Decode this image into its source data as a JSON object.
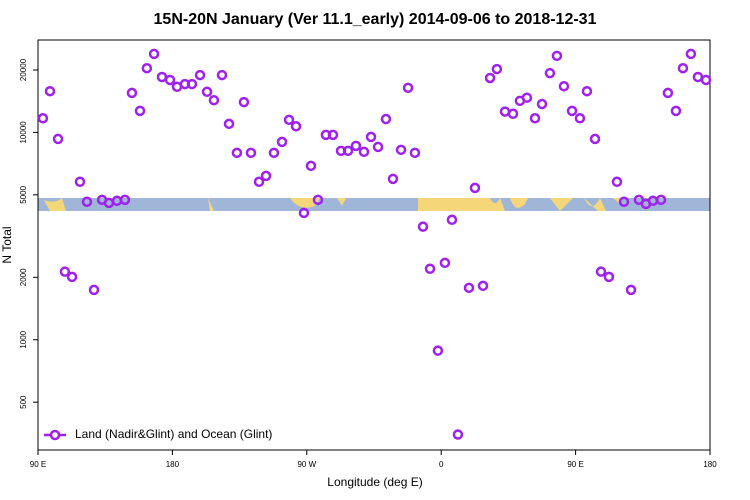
{
  "chart_data": {
    "type": "scatter",
    "title": "15N-20N January (Ver 11.1_early)   2014-09-06 to 2018-12-31",
    "x_label": "Longitude (deg E)",
    "y_label": "N Total",
    "xlim": [
      90,
      540
    ],
    "ylim": [
      294,
      27900
    ],
    "ylog": true,
    "legend": "bottom-left",
    "xticks": [
      {
        "value": 90,
        "label": "90 E"
      },
      180,
      {
        "value": 270,
        "label": "90 W"
      },
      {
        "value": 360,
        "label": "0"
      },
      {
        "value": 450,
        "label": "90 E"
      },
      {
        "value": 540,
        "label": "180"
      }
    ],
    "yticks": [
      500,
      1000,
      2000,
      5000,
      10000,
      20000
    ],
    "series": [
      {
        "name": "Land (Nadir&Glint) and Ocean (Glint)",
        "color": "#a020f0",
        "x": [
          93.3,
          98.0,
          103.4,
          108.0,
          112.8,
          118.1,
          122.8,
          127.5,
          132.9,
          137.5,
          142.9,
          148.2,
          152.9,
          158.3,
          162.9,
          167.7,
          173.0,
          178.4,
          183.1,
          188.4,
          193.1,
          198.5,
          203.2,
          207.8,
          213.2,
          217.9,
          223.2,
          227.9,
          232.6,
          238.0,
          242.7,
          248.0,
          253.4,
          258.1,
          262.8,
          268.1,
          272.8,
          277.5,
          282.8,
          287.5,
          292.9,
          297.6,
          302.9,
          308.3,
          313.0,
          317.7,
          323.0,
          327.7,
          333.1,
          337.8,
          342.4,
          347.8,
          352.5,
          357.8,
          362.5,
          367.2,
          371.2,
          378.6,
          382.6,
          388.0,
          392.7,
          397.3,
          402.7,
          408.1,
          412.7,
          417.4,
          422.8,
          427.5,
          432.8,
          437.5,
          442.2,
          447.6,
          452.9,
          457.6,
          463.0,
          467.0,
          472.3,
          477.7,
          482.4,
          487.1,
          492.4,
          497.1,
          501.8,
          507.2,
          511.8,
          517.2,
          521.9,
          527.2,
          531.9,
          537.3
        ],
        "values": [
          11700,
          15800,
          9300,
          2130,
          2010,
          5780,
          4630,
          1740,
          4730,
          4570,
          4680,
          4730,
          15500,
          12700,
          20400,
          23900,
          18500,
          17900,
          16600,
          17100,
          17100,
          18900,
          15700,
          14300,
          18900,
          11000,
          7970,
          14000,
          7970,
          5780,
          6170,
          7970,
          9000,
          11500,
          10700,
          4090,
          6900,
          4730,
          9730,
          9730,
          8150,
          8150,
          8610,
          8060,
          9510,
          8510,
          11600,
          5970,
          8240,
          16400,
          7970,
          3510,
          2200,
          886,
          2350,
          3790,
          349,
          1780,
          5400,
          1820,
          18300,
          20200,
          12600,
          12300,
          14200,
          14700,
          11700,
          13700,
          19300,
          23400,
          16700,
          12700,
          11700,
          15800,
          9300,
          2130,
          2010,
          5780,
          4630,
          1740,
          4730,
          4520,
          4680,
          4730,
          15500,
          12700,
          20400,
          23900,
          18500,
          17900
        ]
      }
    ]
  }
}
